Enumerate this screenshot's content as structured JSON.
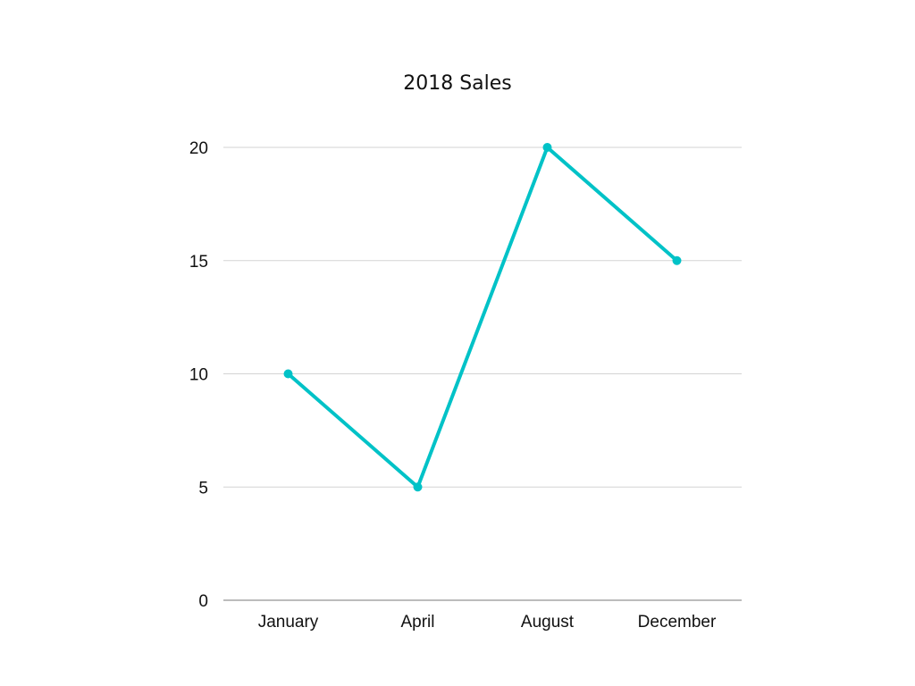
{
  "chart_data": {
    "type": "line",
    "title": "2018 Sales",
    "xlabel": "",
    "ylabel": "",
    "categories": [
      "January",
      "April",
      "August",
      "December"
    ],
    "series": [
      {
        "values": [
          10,
          5,
          20,
          15
        ]
      }
    ],
    "ylim": [
      0,
      20
    ],
    "yticks": [
      0,
      5,
      10,
      15,
      20
    ],
    "grid": true,
    "legend": "none",
    "colors": {
      "line": "#00c2c7",
      "grid": "#d3d3d3",
      "axis": "#a6a6a6",
      "text": "#111111"
    }
  }
}
